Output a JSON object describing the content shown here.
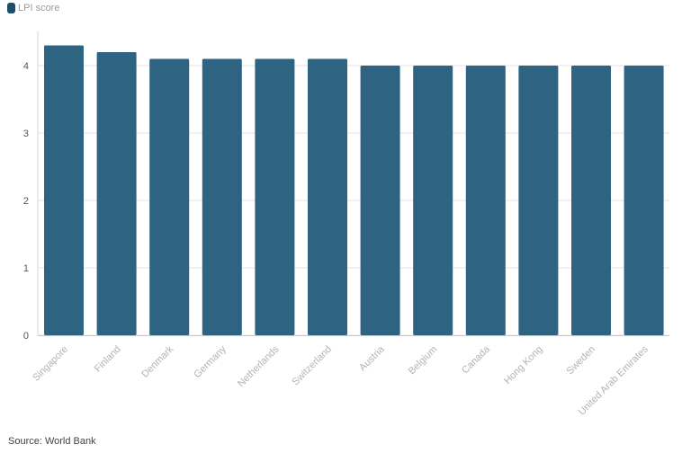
{
  "chart_data": {
    "type": "bar",
    "categories": [
      "Singapore",
      "Finland",
      "Denmark",
      "Germany",
      "Netherlands",
      "Switzerland",
      "Austria",
      "Belgium",
      "Canada",
      "Hong Kong",
      "Sweden",
      "United Arab Emirates"
    ],
    "series": [
      {
        "name": "LPI score",
        "values": [
          4.3,
          4.2,
          4.1,
          4.1,
          4.1,
          4.1,
          4.0,
          4.0,
          4.0,
          4.0,
          4.0,
          4.0
        ]
      }
    ],
    "yticks": [
      0,
      1,
      2,
      3,
      4
    ],
    "ylim": [
      0,
      4.5
    ],
    "grid": true,
    "legend_position": "top-left",
    "bar_color": "#2e6381"
  },
  "legend": {
    "label": "LPI score",
    "color": "#1d4d69"
  },
  "source": "Source: World Bank"
}
